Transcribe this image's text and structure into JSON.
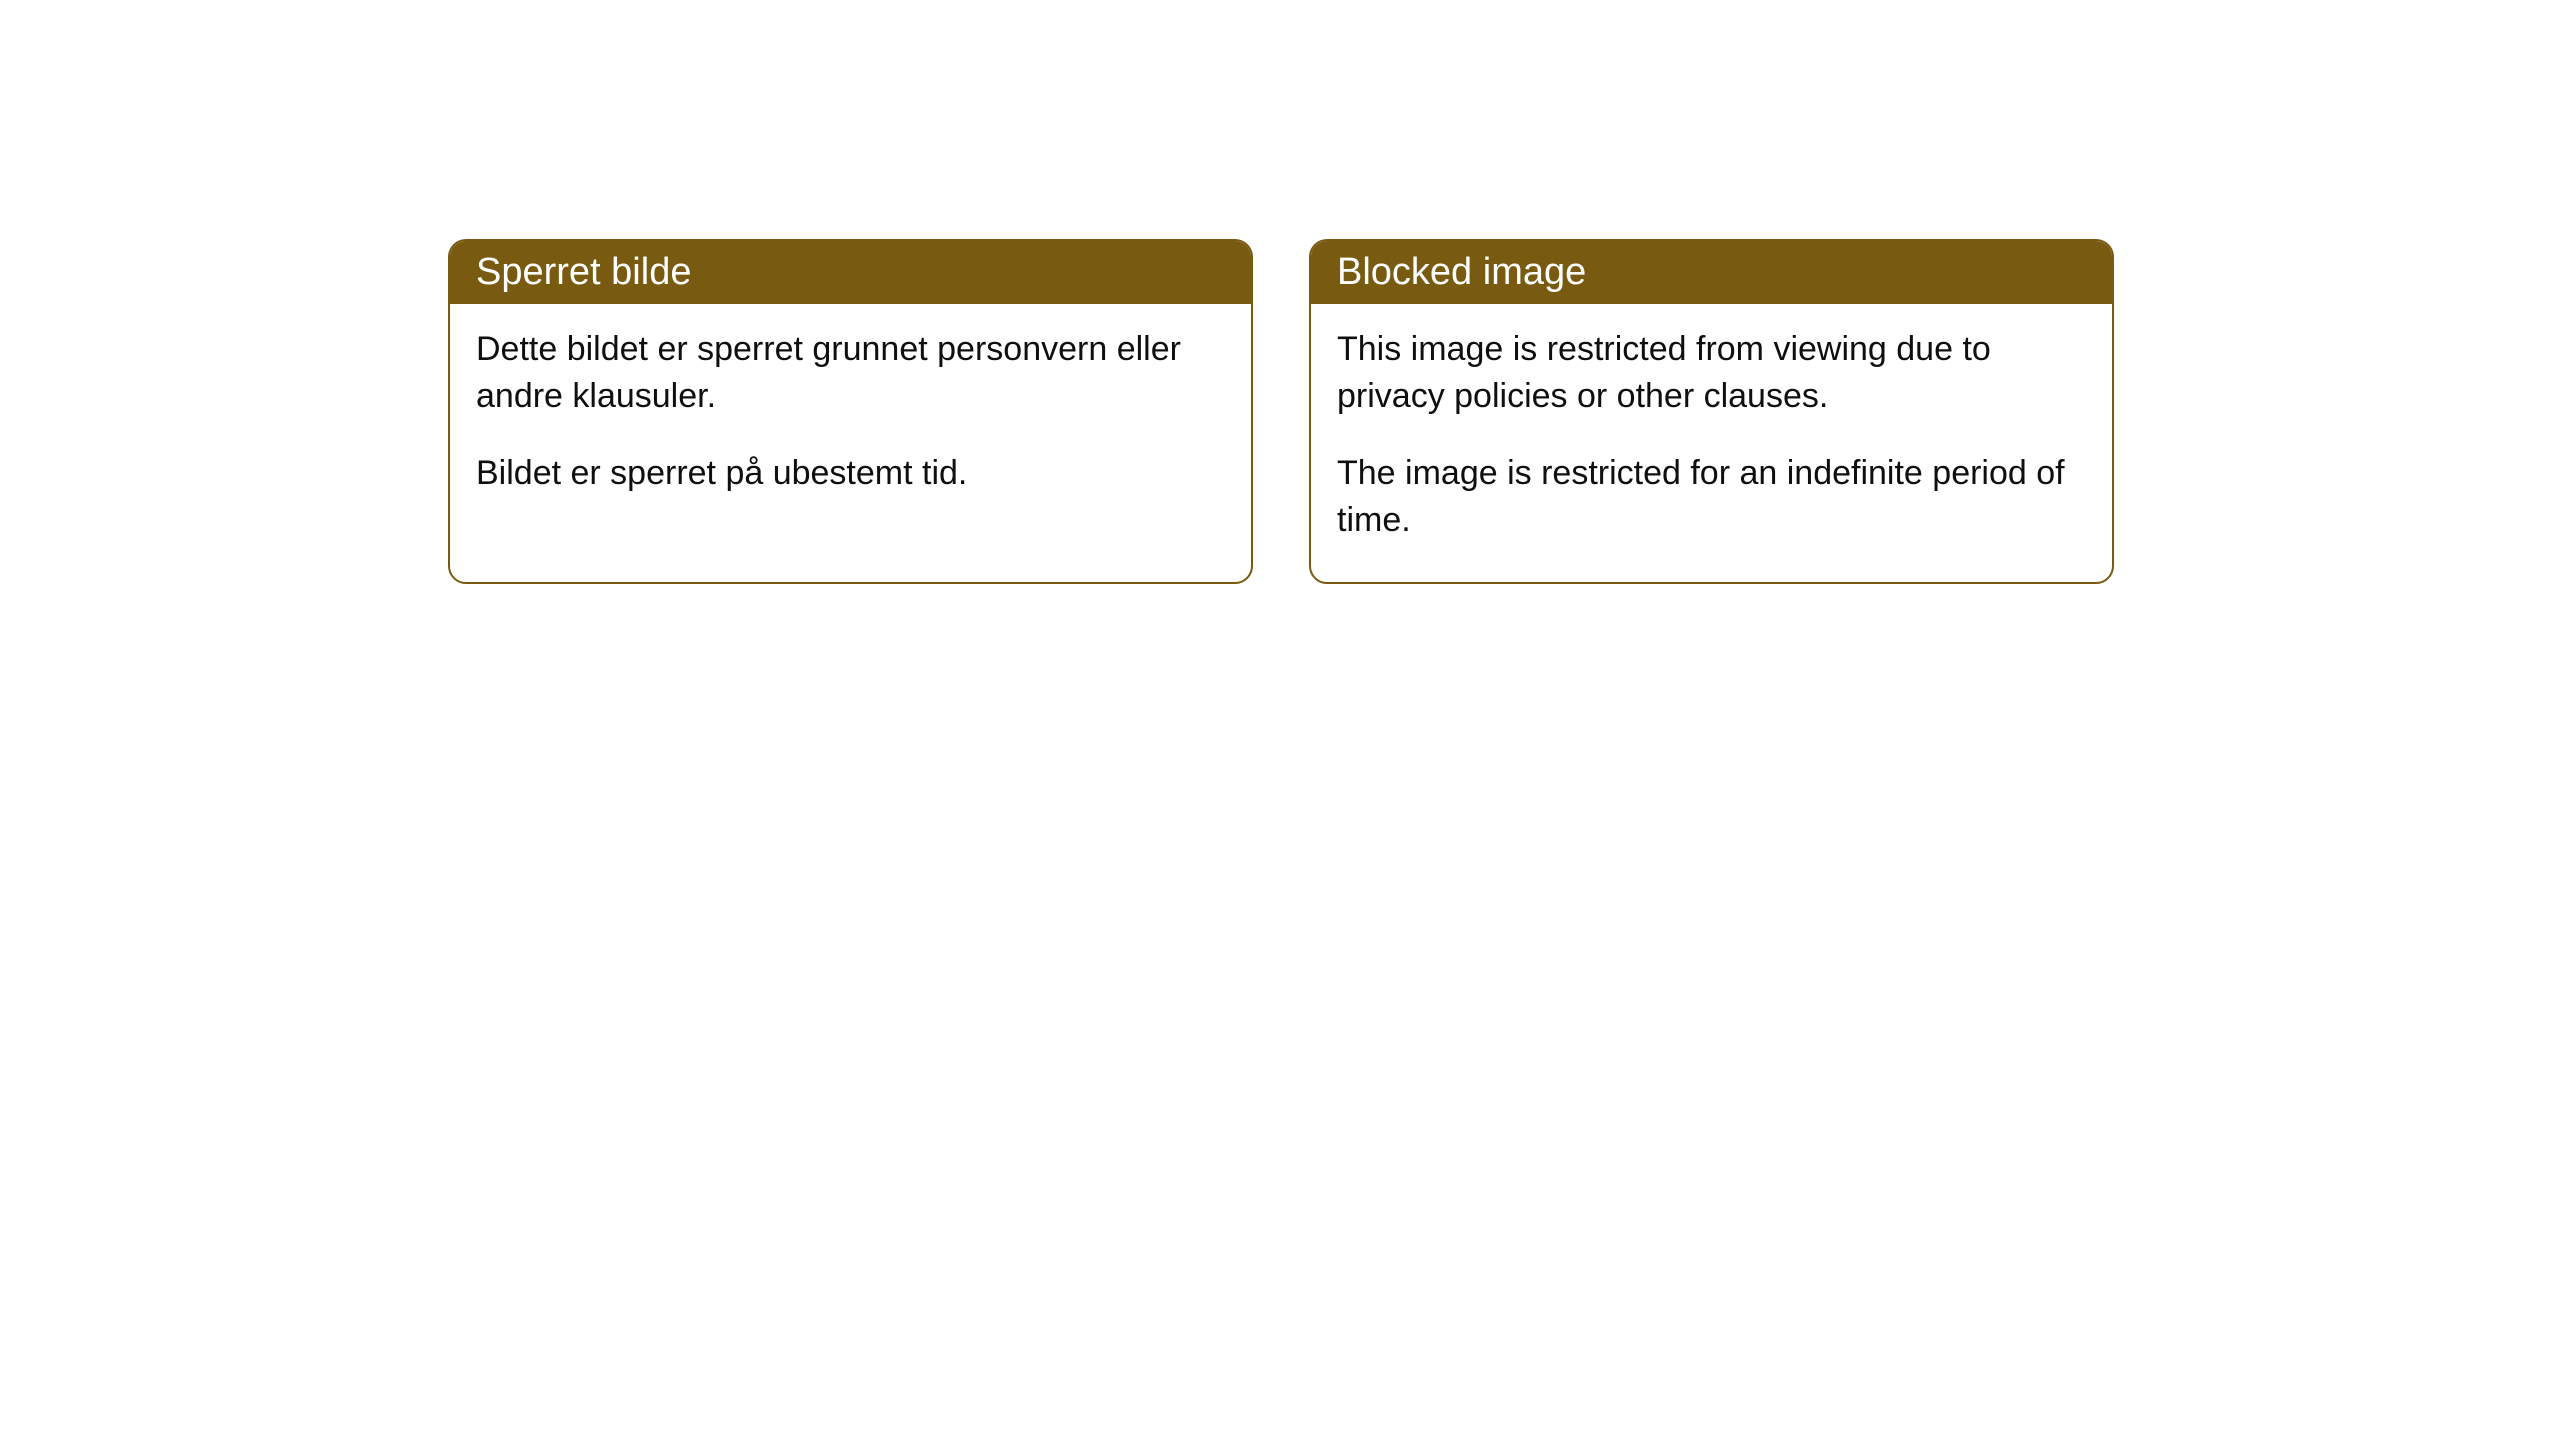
{
  "cards": [
    {
      "header": "Sperret bilde",
      "paragraph1": "Dette bildet er sperret grunnet personvern eller andre klausuler.",
      "paragraph2": "Bildet er sperret på ubestemt tid."
    },
    {
      "header": "Blocked image",
      "paragraph1": "This image is restricted from viewing due to privacy policies or other clauses.",
      "paragraph2": "The image is restricted for an indefinite period of time."
    }
  ],
  "styling": {
    "header_background_color": "#795a11",
    "header_text_color": "#ffffff",
    "border_color": "#795a11",
    "body_text_color": "#0f0f0f",
    "body_background_color": "#ffffff",
    "border_radius": 18,
    "header_fontsize": 38,
    "body_fontsize": 34
  }
}
